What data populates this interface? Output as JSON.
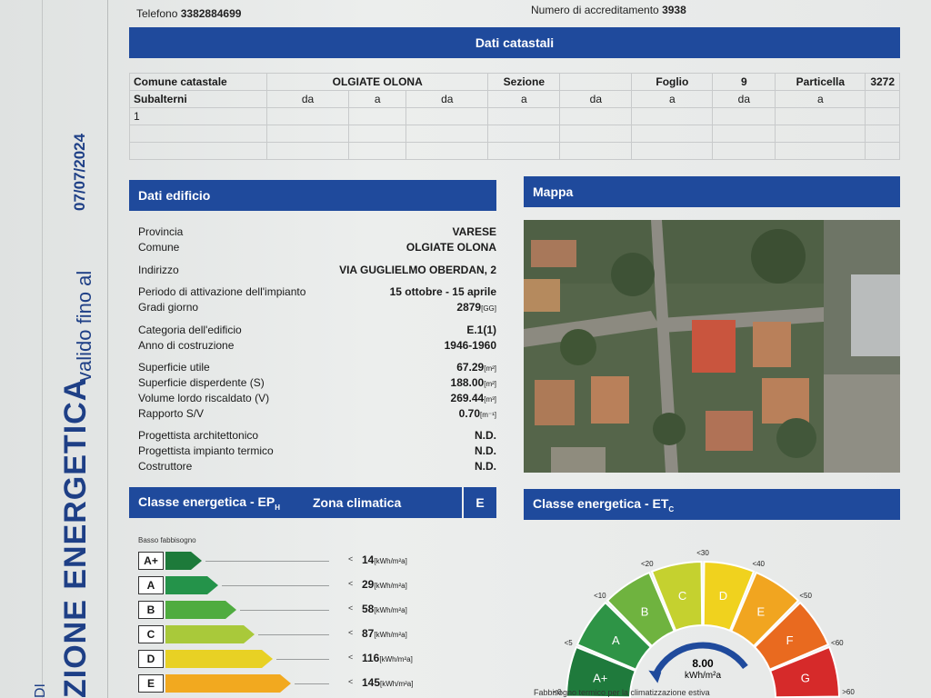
{
  "header": {
    "phone_label": "Telefono",
    "phone": "3382884699",
    "accreditation_label": "Numero di accreditamento",
    "accreditation": "3938"
  },
  "side": {
    "valid_until_label": "valido fino al",
    "date": "07/07/2024",
    "cert_fragment": "ZIONE ENERGETICA",
    "di_fragment": "DI"
  },
  "catasto": {
    "title": "Dati catastali",
    "comune_label": "Comune catastale",
    "comune": "OLGIATE OLONA",
    "sezione_label": "Sezione",
    "foglio_label": "Foglio",
    "foglio": "9",
    "particella_label": "Particella",
    "particella": "3272",
    "subalterni_label": "Subalterni",
    "da": "da",
    "a": "a",
    "sub_value": "1"
  },
  "edificio": {
    "title": "Dati edificio",
    "rows": [
      {
        "k": "Provincia",
        "v": "VARESE",
        "u": ""
      },
      {
        "k": "Comune",
        "v": "OLGIATE OLONA",
        "u": ""
      },
      {
        "k": "Indirizzo",
        "v": "VIA GUGLIELMO OBERDAN, 2",
        "u": ""
      },
      {
        "k": "Periodo di attivazione dell'impianto",
        "v": "15 ottobre - 15 aprile",
        "u": ""
      },
      {
        "k": "Gradi giorno",
        "v": "2879",
        "u": "[GG]"
      },
      {
        "k": "Categoria dell'edificio",
        "v": "E.1(1)",
        "u": ""
      },
      {
        "k": "Anno di costruzione",
        "v": "1946-1960",
        "u": ""
      },
      {
        "k": "Superficie utile",
        "v": "67.29",
        "u": "[m²]"
      },
      {
        "k": "Superficie disperdente (S)",
        "v": "188.00",
        "u": "[m²]"
      },
      {
        "k": "Volume lordo riscaldato (V)",
        "v": "269.44",
        "u": "[m³]"
      },
      {
        "k": "Rapporto S/V",
        "v": "0.70",
        "u": "[m⁻¹]"
      },
      {
        "k": "Progettista architettonico",
        "v": "N.D.",
        "u": ""
      },
      {
        "k": "Progettista impianto termico",
        "v": "N.D.",
        "u": ""
      },
      {
        "k": "Costruttore",
        "v": "N.D.",
        "u": ""
      }
    ]
  },
  "mappa": {
    "title": "Mappa"
  },
  "ep": {
    "title": "Classe energetica - EP",
    "title_sub": "H",
    "zona_label": "Zona climatica",
    "zona": "E",
    "low_label": "Basso fabbisogno",
    "classes": [
      {
        "label": "A+",
        "value": "14",
        "color": "#1d7a3a",
        "width": 40
      },
      {
        "label": "A",
        "value": "29",
        "color": "#24934a",
        "width": 58
      },
      {
        "label": "B",
        "value": "58",
        "color": "#4fac3f",
        "width": 78
      },
      {
        "label": "C",
        "value": "87",
        "color": "#a9c93a",
        "width": 98
      },
      {
        "label": "D",
        "value": "116",
        "color": "#e8d124",
        "width": 118
      },
      {
        "label": "E",
        "value": "145",
        "color": "#f2a91f",
        "width": 138
      }
    ],
    "unit": "[kWh/m²a]",
    "lt": "<"
  },
  "et": {
    "title": "Classe energetica - ET",
    "title_sub": "C",
    "value": "8.00",
    "unit": "kWh/m²a",
    "footer": "Fabbisogno termico per la climatizzazione estiva",
    "scale": [
      "<0",
      "<5",
      "<10",
      "<20",
      "<30",
      "<40",
      "<50",
      "<60",
      ">60"
    ],
    "segments": [
      {
        "label": "A+",
        "color": "#1f7a3c"
      },
      {
        "label": "A",
        "color": "#2e9446"
      },
      {
        "label": "B",
        "color": "#6fb33f"
      },
      {
        "label": "C",
        "color": "#c5d12f"
      },
      {
        "label": "D",
        "color": "#f0d21e"
      },
      {
        "label": "E",
        "color": "#f1a520"
      },
      {
        "label": "F",
        "color": "#e96a1f"
      },
      {
        "label": "G",
        "color": "#d62a2a"
      }
    ]
  }
}
